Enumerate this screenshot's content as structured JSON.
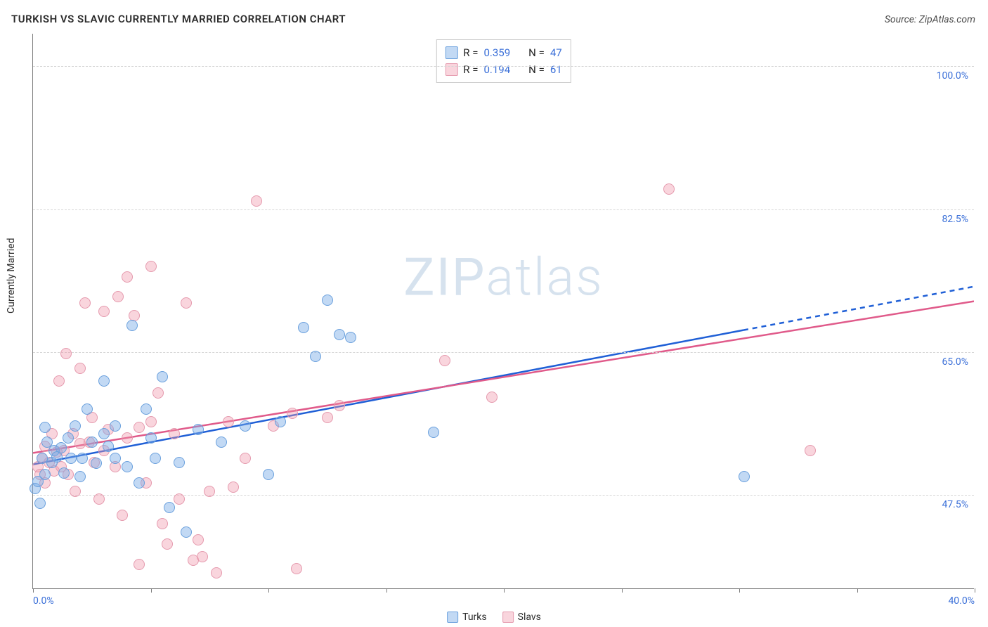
{
  "title": "TURKISH VS SLAVIC CURRENTLY MARRIED CORRELATION CHART",
  "source": "Source: ZipAtlas.com",
  "ylabel": "Currently Married",
  "watermark": {
    "part1": "ZIP",
    "part2": "atlas"
  },
  "chart": {
    "type": "scatter",
    "background_color": "#ffffff",
    "grid_color": "#d6d6d6",
    "axis_color": "#7c7c7c",
    "tick_label_color": "#3a6fd8",
    "title_fontsize": 15,
    "axis_fontsize": 14,
    "xlim": [
      0,
      40
    ],
    "ylim": [
      36,
      104
    ],
    "x_ticks": [
      0,
      5,
      10,
      15,
      20,
      25,
      30,
      35,
      40
    ],
    "x_tick_labels_shown": {
      "0": "0.0%",
      "40": "40.0%"
    },
    "y_gridlines": [
      47.5,
      65.0,
      82.5,
      100.0
    ],
    "y_tick_labels": [
      "47.5%",
      "65.0%",
      "82.5%",
      "100.0%"
    ],
    "series": [
      {
        "name": "Turks",
        "fill": "rgba(120,170,230,0.45)",
        "stroke": "#6aa0dd",
        "trend_color": "#1f5fd6",
        "trend_solid_to_x": 30.2,
        "r_value": "0.359",
        "n_value": "47",
        "marker_radius": 8,
        "points": [
          [
            0.1,
            48.3
          ],
          [
            0.2,
            49.2
          ],
          [
            0.3,
            46.5
          ],
          [
            0.4,
            52.0
          ],
          [
            0.5,
            50.0
          ],
          [
            0.5,
            55.8
          ],
          [
            0.6,
            54.0
          ],
          [
            0.8,
            51.5
          ],
          [
            0.9,
            53.0
          ],
          [
            1.0,
            52.2
          ],
          [
            1.2,
            53.3
          ],
          [
            1.3,
            50.2
          ],
          [
            1.5,
            54.5
          ],
          [
            1.6,
            52.0
          ],
          [
            1.8,
            56.0
          ],
          [
            2.0,
            49.8
          ],
          [
            2.1,
            52.0
          ],
          [
            2.3,
            58.0
          ],
          [
            2.5,
            54.0
          ],
          [
            2.7,
            51.4
          ],
          [
            3.0,
            61.5
          ],
          [
            3.0,
            55.0
          ],
          [
            3.2,
            53.5
          ],
          [
            3.5,
            52.0
          ],
          [
            3.5,
            56.0
          ],
          [
            4.0,
            51.0
          ],
          [
            4.2,
            68.3
          ],
          [
            4.5,
            49.0
          ],
          [
            4.8,
            58.0
          ],
          [
            5.0,
            54.5
          ],
          [
            5.2,
            52.0
          ],
          [
            5.5,
            62.0
          ],
          [
            5.8,
            46.0
          ],
          [
            6.2,
            51.5
          ],
          [
            6.5,
            43.0
          ],
          [
            7.0,
            55.5
          ],
          [
            8.0,
            54.0
          ],
          [
            9.0,
            56.0
          ],
          [
            10.0,
            50.0
          ],
          [
            10.5,
            56.5
          ],
          [
            11.5,
            68.0
          ],
          [
            12.0,
            64.5
          ],
          [
            12.5,
            71.4
          ],
          [
            13.0,
            67.2
          ],
          [
            13.5,
            66.8
          ],
          [
            17.0,
            55.2
          ],
          [
            30.2,
            49.8
          ]
        ],
        "trend": {
          "y_at_x0": 51.2,
          "y_at_x40": 73.0
        }
      },
      {
        "name": "Slavs",
        "fill": "rgba(240,150,170,0.40)",
        "stroke": "#e59aae",
        "trend_color": "#e05a8a",
        "trend_solid_to_x": 40,
        "r_value": "0.194",
        "n_value": "61",
        "marker_radius": 8,
        "points": [
          [
            0.2,
            51.0
          ],
          [
            0.3,
            50.0
          ],
          [
            0.4,
            52.0
          ],
          [
            0.5,
            49.0
          ],
          [
            0.5,
            53.5
          ],
          [
            0.7,
            51.5
          ],
          [
            0.8,
            55.0
          ],
          [
            0.9,
            50.5
          ],
          [
            1.0,
            52.8
          ],
          [
            1.1,
            61.5
          ],
          [
            1.2,
            51.0
          ],
          [
            1.3,
            53.0
          ],
          [
            1.4,
            64.8
          ],
          [
            1.5,
            50.0
          ],
          [
            1.7,
            55.0
          ],
          [
            1.8,
            48.0
          ],
          [
            2.0,
            53.8
          ],
          [
            2.0,
            63.0
          ],
          [
            2.2,
            71.0
          ],
          [
            2.4,
            54.0
          ],
          [
            2.5,
            57.0
          ],
          [
            2.6,
            51.5
          ],
          [
            2.8,
            47.0
          ],
          [
            3.0,
            70.0
          ],
          [
            3.0,
            53.0
          ],
          [
            3.2,
            55.5
          ],
          [
            3.5,
            51.0
          ],
          [
            3.6,
            71.8
          ],
          [
            3.8,
            45.0
          ],
          [
            4.0,
            54.5
          ],
          [
            4.0,
            74.2
          ],
          [
            4.3,
            69.5
          ],
          [
            4.5,
            55.8
          ],
          [
            4.5,
            39.0
          ],
          [
            4.8,
            49.0
          ],
          [
            5.0,
            56.5
          ],
          [
            5.0,
            75.5
          ],
          [
            5.3,
            60.0
          ],
          [
            5.5,
            44.0
          ],
          [
            5.7,
            41.5
          ],
          [
            6.0,
            55.0
          ],
          [
            6.2,
            47.0
          ],
          [
            6.5,
            71.0
          ],
          [
            6.8,
            39.5
          ],
          [
            7.0,
            42.0
          ],
          [
            7.2,
            40.0
          ],
          [
            7.5,
            48.0
          ],
          [
            7.8,
            38.0
          ],
          [
            8.3,
            56.5
          ],
          [
            8.5,
            48.5
          ],
          [
            9.0,
            52.0
          ],
          [
            9.5,
            83.5
          ],
          [
            10.2,
            56.0
          ],
          [
            11.0,
            57.5
          ],
          [
            11.2,
            38.5
          ],
          [
            12.5,
            57.0
          ],
          [
            13.0,
            58.5
          ],
          [
            17.5,
            64.0
          ],
          [
            19.5,
            59.5
          ],
          [
            27.0,
            85.0
          ],
          [
            33.0,
            53.0
          ]
        ],
        "trend": {
          "y_at_x0": 52.6,
          "y_at_x40": 71.2
        }
      }
    ],
    "legend_bottom": [
      {
        "label": "Turks",
        "fill": "rgba(120,170,230,0.45)",
        "stroke": "#6aa0dd"
      },
      {
        "label": "Slavs",
        "fill": "rgba(240,150,170,0.40)",
        "stroke": "#e59aae"
      }
    ]
  },
  "r_box": {
    "r_label": "R =",
    "n_label": "N ="
  }
}
